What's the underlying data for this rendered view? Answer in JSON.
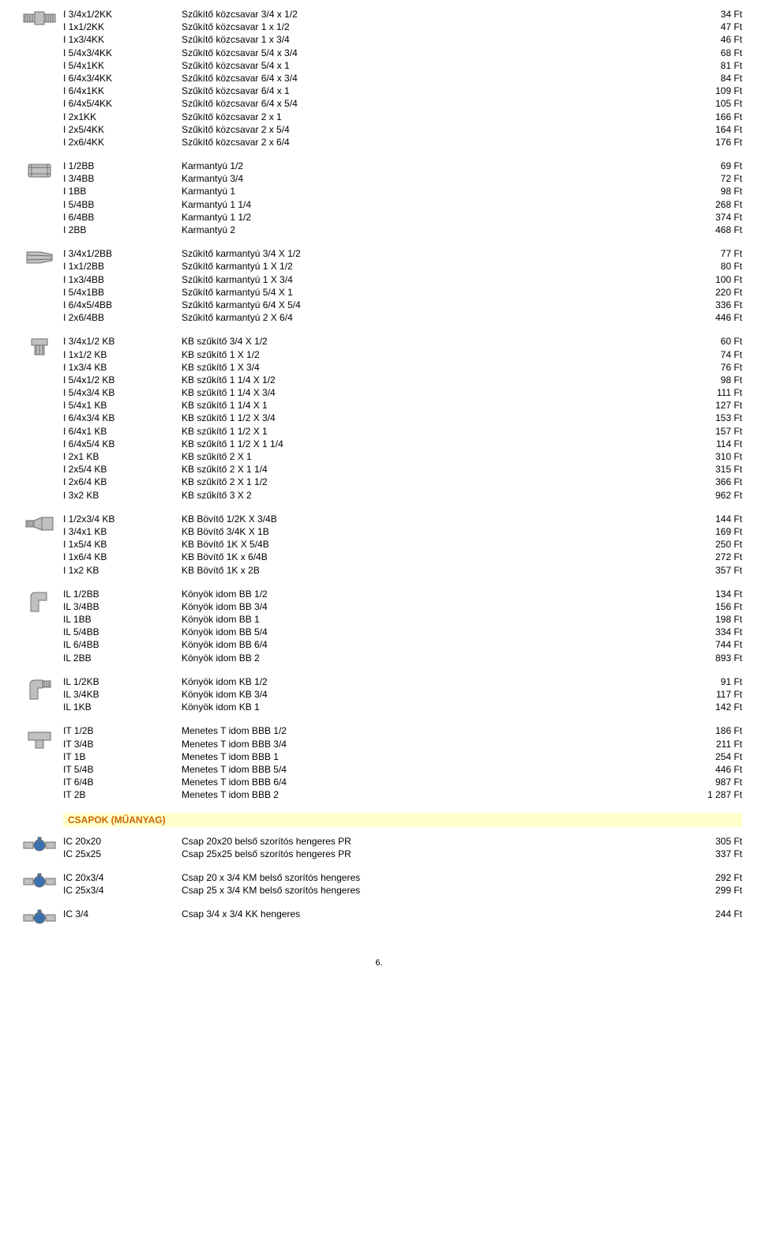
{
  "sections": [
    {
      "icon": "hex-nipple",
      "rows": [
        {
          "code": "I 3/4x1/2KK",
          "desc": "Szűkítő közcsavar 3/4 x 1/2",
          "price": "34 Ft"
        },
        {
          "code": "I 1x1/2KK",
          "desc": "Szűkítő közcsavar 1 x 1/2",
          "price": "47 Ft"
        },
        {
          "code": "I 1x3/4KK",
          "desc": "Szűkítő közcsavar 1 x 3/4",
          "price": "46 Ft"
        },
        {
          "code": "I 5/4x3/4KK",
          "desc": "Szűkítő közcsavar 5/4 x 3/4",
          "price": "68 Ft"
        },
        {
          "code": "I 5/4x1KK",
          "desc": "Szűkítő közcsavar 5/4 x 1",
          "price": "81 Ft"
        },
        {
          "code": "I 6/4x3/4KK",
          "desc": "Szűkítő közcsavar 6/4 x 3/4",
          "price": "84 Ft"
        },
        {
          "code": "I 6/4x1KK",
          "desc": "Szűkítő közcsavar 6/4 x 1",
          "price": "109 Ft"
        },
        {
          "code": "I 6/4x5/4KK",
          "desc": "Szűkítő közcsavar 6/4 x 5/4",
          "price": "105 Ft"
        },
        {
          "code": "I 2x1KK",
          "desc": "Szűkítő közcsavar 2 x 1",
          "price": "166 Ft"
        },
        {
          "code": "I 2x5/4KK",
          "desc": "Szűkítő közcsavar 2 x 5/4",
          "price": "164 Ft"
        },
        {
          "code": "I 2x6/4KK",
          "desc": "Szűkítő közcsavar 2 x 6/4",
          "price": "176 Ft"
        }
      ]
    },
    {
      "icon": "socket",
      "rows": [
        {
          "code": "I 1/2BB",
          "desc": "Karmantyú 1/2",
          "price": "69 Ft"
        },
        {
          "code": "I 3/4BB",
          "desc": "Karmantyú 3/4",
          "price": "72 Ft"
        },
        {
          "code": "I 1BB",
          "desc": "Karmantyú 1",
          "price": "98 Ft"
        },
        {
          "code": "I 5/4BB",
          "desc": "Karmantyú 1 1/4",
          "price": "268 Ft"
        },
        {
          "code": "I 6/4BB",
          "desc": "Karmantyú 1 1/2",
          "price": "374 Ft"
        },
        {
          "code": "I 2BB",
          "desc": "Karmantyú 2",
          "price": "468 Ft"
        }
      ]
    },
    {
      "icon": "reducer-socket",
      "rows": [
        {
          "code": "I 3/4x1/2BB",
          "desc": "Szűkítő karmantyú 3/4 X 1/2",
          "price": "77 Ft"
        },
        {
          "code": "I 1x1/2BB",
          "desc": "Szűkítő karmantyú 1 X 1/2",
          "price": "80 Ft"
        },
        {
          "code": "I 1x3/4BB",
          "desc": "Szűkítő karmantyú 1 X 3/4",
          "price": "100 Ft"
        },
        {
          "code": "I 5/4x1BB",
          "desc": "Szűkítő karmantyú 5/4 X 1",
          "price": "220 Ft"
        },
        {
          "code": "I 6/4x5/4BB",
          "desc": "Szűkítő karmantyú 6/4 X 5/4",
          "price": "336 Ft"
        },
        {
          "code": "I 2x6/4BB",
          "desc": "Szűkítő karmantyú 2 X 6/4",
          "price": "446 Ft"
        }
      ]
    },
    {
      "icon": "bushing",
      "rows": [
        {
          "code": "I 3/4x1/2 KB",
          "desc": "KB szűkítő 3/4 X 1/2",
          "price": "60 Ft"
        },
        {
          "code": "I 1x1/2 KB",
          "desc": "KB szűkítő 1 X 1/2",
          "price": "74 Ft"
        },
        {
          "code": "I 1x3/4 KB",
          "desc": "KB szűkítő 1 X 3/4",
          "price": "76 Ft"
        },
        {
          "code": "I 5/4x1/2 KB",
          "desc": "KB szűkítő 1 1/4 X 1/2",
          "price": "98 Ft"
        },
        {
          "code": "I 5/4x3/4 KB",
          "desc": "KB szűkítő 1 1/4 X 3/4",
          "price": "111 Ft"
        },
        {
          "code": "I 5/4x1 KB",
          "desc": "KB szűkítő 1 1/4 X 1",
          "price": "127 Ft"
        },
        {
          "code": "I 6/4x3/4 KB",
          "desc": "KB szűkítő 1 1/2 X 3/4",
          "price": "153 Ft"
        },
        {
          "code": "I 6/4x1 KB",
          "desc": "KB szűkítő 1 1/2 X 1",
          "price": "157 Ft"
        },
        {
          "code": "I 6/4x5/4 KB",
          "desc": "KB szűkítő 1 1/2 X 1 1/4",
          "price": "114 Ft"
        },
        {
          "code": "I 2x1 KB",
          "desc": "KB szűkítő 2 X 1",
          "price": "310 Ft"
        },
        {
          "code": "I 2x5/4 KB",
          "desc": "KB szűkítő 2 X 1 1/4",
          "price": "315 Ft"
        },
        {
          "code": "I 2x6/4 KB",
          "desc": "KB szűkítő 2 X 1 1/2",
          "price": "366 Ft"
        },
        {
          "code": "I 3x2 KB",
          "desc": "KB szűkítő 3 X 2",
          "price": "962 Ft"
        }
      ]
    },
    {
      "icon": "enlarger",
      "rows": [
        {
          "code": "I 1/2x3/4 KB",
          "desc": "KB Bövítő 1/2K X 3/4B",
          "price": "144 Ft"
        },
        {
          "code": "I 3/4x1 KB",
          "desc": "KB Bövítő 3/4K X 1B",
          "price": "169 Ft"
        },
        {
          "code": "I 1x5/4 KB",
          "desc": "KB Bövítő 1K X 5/4B",
          "price": "250 Ft"
        },
        {
          "code": "I 1x6/4 KB",
          "desc": "KB Bövítő 1K x 6/4B",
          "price": "272 Ft"
        },
        {
          "code": "I 1x2 KB",
          "desc": "KB Bövítő 1K x 2B",
          "price": "357 Ft"
        }
      ]
    },
    {
      "icon": "elbow-bb",
      "rows": [
        {
          "code": "IL 1/2BB",
          "desc": "Könyök idom BB 1/2",
          "price": "134 Ft"
        },
        {
          "code": "IL 3/4BB",
          "desc": "Könyök idom BB 3/4",
          "price": "156 Ft"
        },
        {
          "code": "IL 1BB",
          "desc": "Könyök idom BB 1",
          "price": "198 Ft"
        },
        {
          "code": "IL 5/4BB",
          "desc": "Könyök idom BB 5/4",
          "price": "334 Ft"
        },
        {
          "code": "IL 6/4BB",
          "desc": "Könyök idom BB 6/4",
          "price": "744 Ft"
        },
        {
          "code": "IL 2BB",
          "desc": "Könyök idom BB 2",
          "price": "893 Ft"
        }
      ]
    },
    {
      "icon": "elbow-kb",
      "rows": [
        {
          "code": "IL 1/2KB",
          "desc": "Könyök idom KB 1/2",
          "price": "91 Ft"
        },
        {
          "code": "IL 3/4KB",
          "desc": "Könyök idom KB 3/4",
          "price": "117 Ft"
        },
        {
          "code": "IL 1KB",
          "desc": "Könyök idom KB 1",
          "price": "142 Ft"
        }
      ]
    },
    {
      "icon": "tee",
      "rows": [
        {
          "code": "IT 1/2B",
          "desc": "Menetes T idom BBB 1/2",
          "price": "186 Ft"
        },
        {
          "code": "IT 3/4B",
          "desc": "Menetes T idom BBB  3/4",
          "price": "211 Ft"
        },
        {
          "code": "IT 1B",
          "desc": "Menetes T idom BBB  1",
          "price": "254 Ft"
        },
        {
          "code": "IT 5/4B",
          "desc": "Menetes T idom BBB 5/4",
          "price": "446 Ft"
        },
        {
          "code": "IT 6/4B",
          "desc": "Menetes T idom BBB 6/4",
          "price": "987 Ft"
        },
        {
          "code": "IT 2B",
          "desc": "Menetes T idom BBB 2",
          "price": "1 287 Ft"
        }
      ]
    }
  ],
  "category_header": "CSAPOK (MŰANYAG)",
  "sections2": [
    {
      "icon": "valve1",
      "rows": [
        {
          "code": "IC 20x20",
          "desc": "Csap 20x20 belső szorítós hengeres PR",
          "price": "305 Ft"
        },
        {
          "code": "IC 25x25",
          "desc": "Csap 25x25 belső szorítós hengeres PR",
          "price": "337 Ft"
        }
      ]
    },
    {
      "icon": "valve2",
      "rows": [
        {
          "code": "IC 20x3/4",
          "desc": "Csap 20 x 3/4 KM belső szorítós hengeres",
          "price": "292 Ft"
        },
        {
          "code": "IC 25x3/4",
          "desc": "Csap 25 x 3/4 KM belső szorítós hengeres",
          "price": "299 Ft"
        }
      ]
    },
    {
      "icon": "valve3",
      "rows": [
        {
          "code": "IC 3/4",
          "desc": "Csap 3/4 x 3/4 KK hengeres",
          "price": "244 Ft"
        }
      ]
    }
  ],
  "page_number": "6.",
  "colors": {
    "header_bg": "#ffffcc",
    "header_fg": "#cc6600",
    "body_bg": "#ffffff",
    "text": "#000000",
    "icon_fill": "#c0c0c0",
    "icon_stroke": "#707070"
  },
  "fonts": {
    "family": "Arial",
    "size_pt": 9
  }
}
